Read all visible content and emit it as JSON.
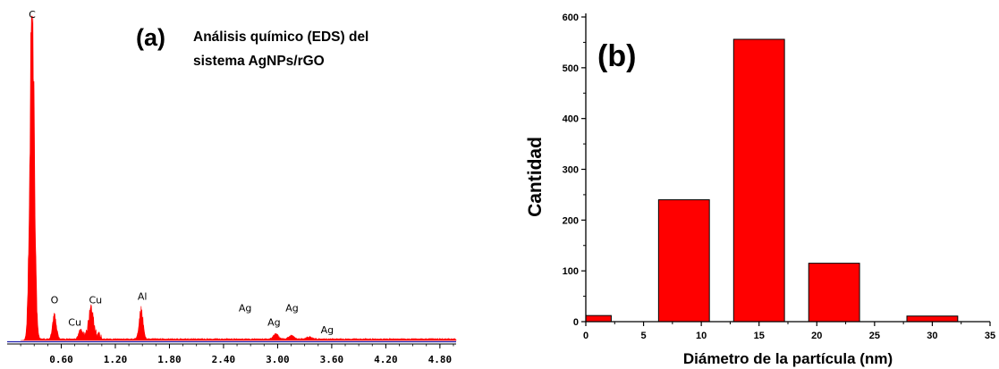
{
  "chart_data": [
    {
      "type": "line",
      "panel_label": "(a)",
      "title_lines": [
        "Análisis químico (EDS) del",
        "sistema AgNPs/rGO"
      ],
      "xlabel": "",
      "ylabel": "",
      "x_ticks": [
        "0.60",
        "1.20",
        "1.80",
        "2.40",
        "3.00",
        "3.60",
        "4.20",
        "4.80"
      ],
      "xlim": [
        0.0,
        4.98
      ],
      "ylim": [
        0,
        100
      ],
      "series_color": "#ff0000",
      "baseline_color": "#1f1fb0",
      "peaks": [
        {
          "label": "C",
          "x": 0.277,
          "height": 100,
          "width": 0.035
        },
        {
          "label": "O",
          "x": 0.525,
          "height": 7,
          "width": 0.03
        },
        {
          "label": "Cu",
          "x": 0.815,
          "height": 3,
          "width": 0.03
        },
        {
          "label": "Cu",
          "x": 0.93,
          "height": 8,
          "width": 0.035
        },
        {
          "label": "Al",
          "x": 1.486,
          "height": 9,
          "width": 0.03
        },
        {
          "label": "Ag",
          "x": 2.98,
          "height": 1.5,
          "width": 0.04
        },
        {
          "label": "Ag",
          "x": 3.15,
          "height": 1.0,
          "width": 0.04
        },
        {
          "label": "Ag",
          "x": 3.35,
          "height": 0.6,
          "width": 0.05
        }
      ],
      "peak_labels": [
        {
          "text": "C",
          "x": 0.277,
          "level": 99.5
        },
        {
          "text": "O",
          "x": 0.525,
          "level": 11.5
        },
        {
          "text": "Cu",
          "x": 0.75,
          "level": 4.5
        },
        {
          "text": "Cu",
          "x": 0.98,
          "level": 11.5
        },
        {
          "text": "Al",
          "x": 1.5,
          "level": 12.5
        },
        {
          "text": "Ag",
          "x": 2.64,
          "level": 9
        },
        {
          "text": "Ag",
          "x": 2.96,
          "level": 4.5
        },
        {
          "text": "Ag",
          "x": 3.16,
          "level": 9
        },
        {
          "text": "Ag",
          "x": 3.55,
          "level": 2.2
        }
      ]
    },
    {
      "type": "bar",
      "panel_label": "(b)",
      "xlabel": "Diámetro de la partícula (nm)",
      "ylabel": "Cantidad",
      "xlim": [
        0,
        35
      ],
      "ylim": [
        0,
        600
      ],
      "x_ticks": [
        0,
        5,
        10,
        15,
        20,
        25,
        30,
        35
      ],
      "y_ticks": [
        0,
        100,
        200,
        300,
        400,
        500,
        600
      ],
      "bar_color": "#ff0000",
      "bar_width": 4.4,
      "bars": [
        {
          "x": 0,
          "value": 12
        },
        {
          "x": 8.5,
          "value": 240
        },
        {
          "x": 15,
          "value": 556
        },
        {
          "x": 21.5,
          "value": 115
        },
        {
          "x": 30,
          "value": 11
        }
      ]
    }
  ]
}
